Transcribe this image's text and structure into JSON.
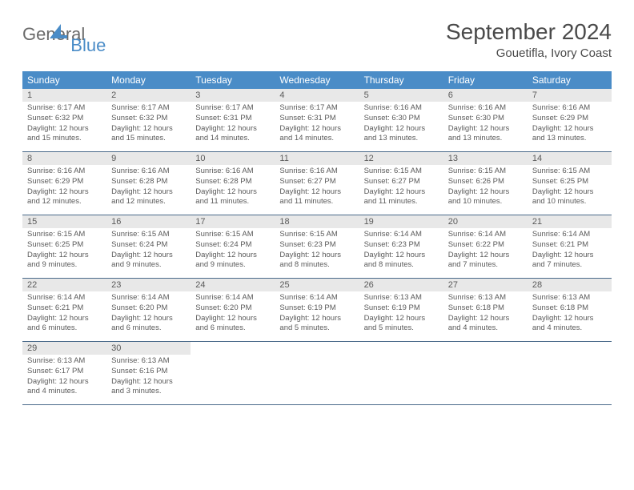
{
  "logo": {
    "main": "General",
    "sub": "Blue"
  },
  "title": "September 2024",
  "location": "Gouetifla, Ivory Coast",
  "colors": {
    "header_bg": "#4a8cc7",
    "header_text": "#ffffff",
    "daynum_bg": "#e8e8e8",
    "row_border": "#4a6a8a",
    "text": "#5a5a5a"
  },
  "weekdays": [
    "Sunday",
    "Monday",
    "Tuesday",
    "Wednesday",
    "Thursday",
    "Friday",
    "Saturday"
  ],
  "weeks": [
    [
      {
        "n": "1",
        "sr": "Sunrise: 6:17 AM",
        "ss": "Sunset: 6:32 PM",
        "d1": "Daylight: 12 hours",
        "d2": "and 15 minutes."
      },
      {
        "n": "2",
        "sr": "Sunrise: 6:17 AM",
        "ss": "Sunset: 6:32 PM",
        "d1": "Daylight: 12 hours",
        "d2": "and 15 minutes."
      },
      {
        "n": "3",
        "sr": "Sunrise: 6:17 AM",
        "ss": "Sunset: 6:31 PM",
        "d1": "Daylight: 12 hours",
        "d2": "and 14 minutes."
      },
      {
        "n": "4",
        "sr": "Sunrise: 6:17 AM",
        "ss": "Sunset: 6:31 PM",
        "d1": "Daylight: 12 hours",
        "d2": "and 14 minutes."
      },
      {
        "n": "5",
        "sr": "Sunrise: 6:16 AM",
        "ss": "Sunset: 6:30 PM",
        "d1": "Daylight: 12 hours",
        "d2": "and 13 minutes."
      },
      {
        "n": "6",
        "sr": "Sunrise: 6:16 AM",
        "ss": "Sunset: 6:30 PM",
        "d1": "Daylight: 12 hours",
        "d2": "and 13 minutes."
      },
      {
        "n": "7",
        "sr": "Sunrise: 6:16 AM",
        "ss": "Sunset: 6:29 PM",
        "d1": "Daylight: 12 hours",
        "d2": "and 13 minutes."
      }
    ],
    [
      {
        "n": "8",
        "sr": "Sunrise: 6:16 AM",
        "ss": "Sunset: 6:29 PM",
        "d1": "Daylight: 12 hours",
        "d2": "and 12 minutes."
      },
      {
        "n": "9",
        "sr": "Sunrise: 6:16 AM",
        "ss": "Sunset: 6:28 PM",
        "d1": "Daylight: 12 hours",
        "d2": "and 12 minutes."
      },
      {
        "n": "10",
        "sr": "Sunrise: 6:16 AM",
        "ss": "Sunset: 6:28 PM",
        "d1": "Daylight: 12 hours",
        "d2": "and 11 minutes."
      },
      {
        "n": "11",
        "sr": "Sunrise: 6:16 AM",
        "ss": "Sunset: 6:27 PM",
        "d1": "Daylight: 12 hours",
        "d2": "and 11 minutes."
      },
      {
        "n": "12",
        "sr": "Sunrise: 6:15 AM",
        "ss": "Sunset: 6:27 PM",
        "d1": "Daylight: 12 hours",
        "d2": "and 11 minutes."
      },
      {
        "n": "13",
        "sr": "Sunrise: 6:15 AM",
        "ss": "Sunset: 6:26 PM",
        "d1": "Daylight: 12 hours",
        "d2": "and 10 minutes."
      },
      {
        "n": "14",
        "sr": "Sunrise: 6:15 AM",
        "ss": "Sunset: 6:25 PM",
        "d1": "Daylight: 12 hours",
        "d2": "and 10 minutes."
      }
    ],
    [
      {
        "n": "15",
        "sr": "Sunrise: 6:15 AM",
        "ss": "Sunset: 6:25 PM",
        "d1": "Daylight: 12 hours",
        "d2": "and 9 minutes."
      },
      {
        "n": "16",
        "sr": "Sunrise: 6:15 AM",
        "ss": "Sunset: 6:24 PM",
        "d1": "Daylight: 12 hours",
        "d2": "and 9 minutes."
      },
      {
        "n": "17",
        "sr": "Sunrise: 6:15 AM",
        "ss": "Sunset: 6:24 PM",
        "d1": "Daylight: 12 hours",
        "d2": "and 9 minutes."
      },
      {
        "n": "18",
        "sr": "Sunrise: 6:15 AM",
        "ss": "Sunset: 6:23 PM",
        "d1": "Daylight: 12 hours",
        "d2": "and 8 minutes."
      },
      {
        "n": "19",
        "sr": "Sunrise: 6:14 AM",
        "ss": "Sunset: 6:23 PM",
        "d1": "Daylight: 12 hours",
        "d2": "and 8 minutes."
      },
      {
        "n": "20",
        "sr": "Sunrise: 6:14 AM",
        "ss": "Sunset: 6:22 PM",
        "d1": "Daylight: 12 hours",
        "d2": "and 7 minutes."
      },
      {
        "n": "21",
        "sr": "Sunrise: 6:14 AM",
        "ss": "Sunset: 6:21 PM",
        "d1": "Daylight: 12 hours",
        "d2": "and 7 minutes."
      }
    ],
    [
      {
        "n": "22",
        "sr": "Sunrise: 6:14 AM",
        "ss": "Sunset: 6:21 PM",
        "d1": "Daylight: 12 hours",
        "d2": "and 6 minutes."
      },
      {
        "n": "23",
        "sr": "Sunrise: 6:14 AM",
        "ss": "Sunset: 6:20 PM",
        "d1": "Daylight: 12 hours",
        "d2": "and 6 minutes."
      },
      {
        "n": "24",
        "sr": "Sunrise: 6:14 AM",
        "ss": "Sunset: 6:20 PM",
        "d1": "Daylight: 12 hours",
        "d2": "and 6 minutes."
      },
      {
        "n": "25",
        "sr": "Sunrise: 6:14 AM",
        "ss": "Sunset: 6:19 PM",
        "d1": "Daylight: 12 hours",
        "d2": "and 5 minutes."
      },
      {
        "n": "26",
        "sr": "Sunrise: 6:13 AM",
        "ss": "Sunset: 6:19 PM",
        "d1": "Daylight: 12 hours",
        "d2": "and 5 minutes."
      },
      {
        "n": "27",
        "sr": "Sunrise: 6:13 AM",
        "ss": "Sunset: 6:18 PM",
        "d1": "Daylight: 12 hours",
        "d2": "and 4 minutes."
      },
      {
        "n": "28",
        "sr": "Sunrise: 6:13 AM",
        "ss": "Sunset: 6:18 PM",
        "d1": "Daylight: 12 hours",
        "d2": "and 4 minutes."
      }
    ],
    [
      {
        "n": "29",
        "sr": "Sunrise: 6:13 AM",
        "ss": "Sunset: 6:17 PM",
        "d1": "Daylight: 12 hours",
        "d2": "and 4 minutes."
      },
      {
        "n": "30",
        "sr": "Sunrise: 6:13 AM",
        "ss": "Sunset: 6:16 PM",
        "d1": "Daylight: 12 hours",
        "d2": "and 3 minutes."
      },
      null,
      null,
      null,
      null,
      null
    ]
  ]
}
